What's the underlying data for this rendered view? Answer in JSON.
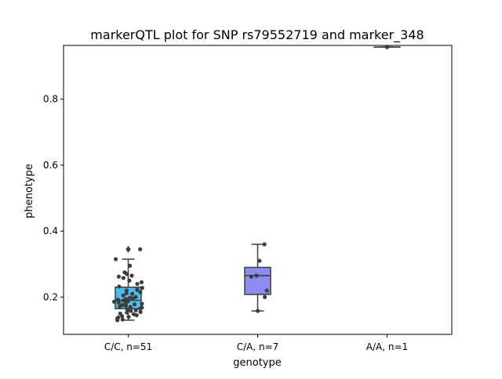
{
  "chart_data": {
    "type": "box",
    "title": "markerQTL plot for SNP rs79552719 and marker_348",
    "xlabel": "genotype",
    "ylabel": "phenotype",
    "ylim": [
      0.087,
      0.963
    ],
    "y_ticks": [
      0.2,
      0.4,
      0.6,
      0.8
    ],
    "y_tick_labels": [
      "0.2",
      "0.4",
      "0.6",
      "0.8"
    ],
    "grid": false,
    "categories": [
      "C/C, n=51",
      "C/A, n=7",
      "A/A, n=1"
    ],
    "boxes": [
      {
        "category": "C/C, n=51",
        "color": "#4DBEEE",
        "q1": 0.165,
        "median": 0.19,
        "q3": 0.23,
        "whisker_low": 0.13,
        "whisker_high": 0.315,
        "outliers": [
          0.345
        ]
      },
      {
        "category": "C/A, n=7",
        "color": "#8C8CF0",
        "q1": 0.208,
        "median": 0.265,
        "q3": 0.29,
        "whisker_low": 0.158,
        "whisker_high": 0.36,
        "outliers": []
      },
      {
        "category": "A/A, n=1",
        "color": "#F08C8C",
        "q1": 0.958,
        "median": 0.958,
        "q3": 0.958,
        "whisker_low": 0.958,
        "whisker_high": 0.958,
        "outliers": []
      }
    ],
    "points": [
      {
        "category": "C/C, n=51",
        "values": [
          0.345,
          0.315,
          0.295,
          0.275,
          0.27,
          0.265,
          0.262,
          0.258,
          0.25,
          0.245,
          0.24,
          0.232,
          0.228,
          0.222,
          0.22,
          0.215,
          0.212,
          0.21,
          0.205,
          0.2,
          0.198,
          0.196,
          0.194,
          0.192,
          0.19,
          0.188,
          0.186,
          0.184,
          0.182,
          0.18,
          0.178,
          0.176,
          0.174,
          0.172,
          0.17,
          0.168,
          0.165,
          0.162,
          0.16,
          0.158,
          0.155,
          0.153,
          0.15,
          0.148,
          0.145,
          0.142,
          0.14,
          0.138,
          0.135,
          0.132,
          0.13
        ]
      },
      {
        "category": "C/A, n=7",
        "values": [
          0.36,
          0.31,
          0.265,
          0.262,
          0.22,
          0.2,
          0.158
        ]
      },
      {
        "category": "A/A, n=1",
        "values": [
          0.958
        ]
      }
    ]
  }
}
